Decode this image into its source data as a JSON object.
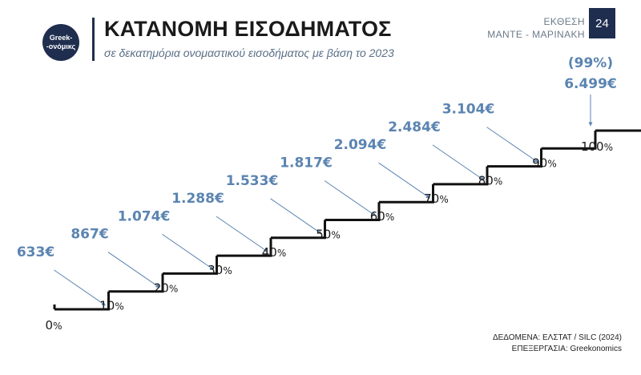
{
  "header": {
    "logo_line1": "Greek-",
    "logo_line2": "-ονόμικς",
    "title": "ΚΑΤΑΝΟΜΗ ΕΙΣΟΔΗΜΑΤΟΣ",
    "subtitle": "σε δεκατημόρια ονομαστικού εισοδήματος με βάση το 2023",
    "report_line1": "ΕΚΘΕΣΗ",
    "report_line2": "ΜΑΝΤΕ - ΜΑΡΙΝΑΚΗ",
    "page_number": "24"
  },
  "footer": {
    "source": "ΔΕΔΟΜΕΝΑ: ΕΛΣΤΑΤ / SILC (2024)",
    "processing": "ΕΠΕΞΕΡΓΑΣΙΑ: Greekonomics"
  },
  "colors": {
    "accent": "#5b84b1",
    "navy": "#1f2d4e",
    "step_line": "#111111"
  },
  "chart_data": {
    "type": "step",
    "title": "ΚΑΤΑΝΟΜΗ ΕΙΣΟΔΗΜΑΤΟΣ",
    "subtitle": "σε δεκατημόρια ονομαστικού εισοδήματος με βάση το 2023",
    "unit": "€",
    "xlabel": "",
    "ylabel": "",
    "x_labels": [
      "0%",
      "10%",
      "20%",
      "30%",
      "40%",
      "50%",
      "60%",
      "70%",
      "80%",
      "90%",
      "100%"
    ],
    "values": [
      633,
      867,
      1074,
      1288,
      1533,
      1817,
      2094,
      2484,
      3104,
      6499
    ],
    "value_labels": [
      "633€",
      "867€",
      "1.074€",
      "1.288€",
      "1.533€",
      "1.817€",
      "2.094€",
      "2.484€",
      "3.104€",
      "6.499€"
    ],
    "extra_label": "(99%)"
  }
}
